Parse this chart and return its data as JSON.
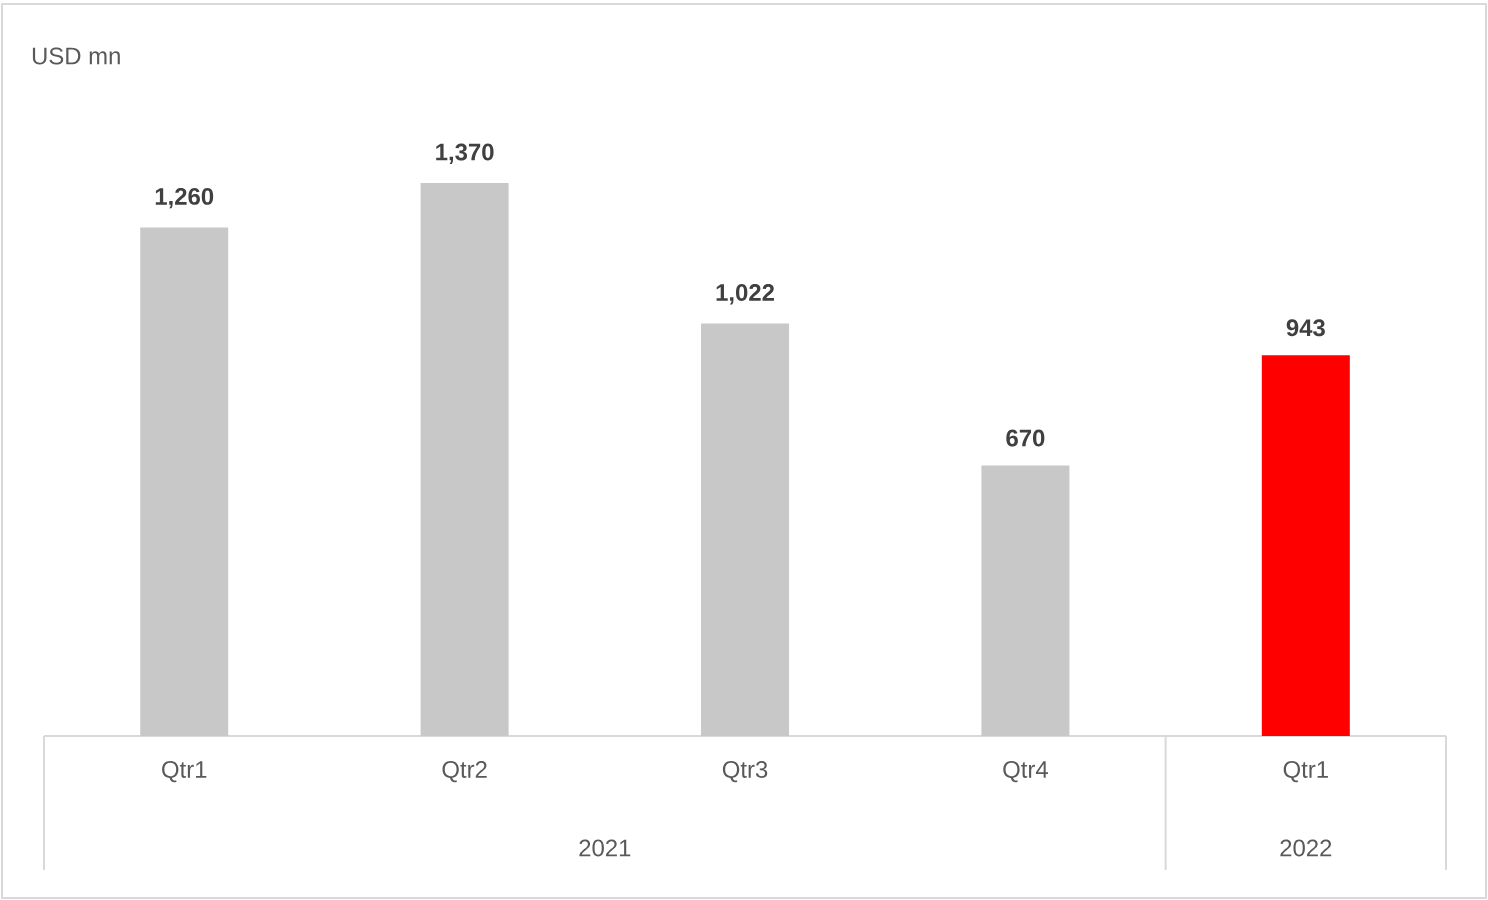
{
  "chart_data": {
    "type": "bar",
    "ylabel": "USD mn",
    "categories": [
      "Qtr1",
      "Qtr2",
      "Qtr3",
      "Qtr4",
      "Qtr1"
    ],
    "values": [
      1260,
      1370,
      1022,
      670,
      943
    ],
    "colors": [
      "#c8c8c8",
      "#c8c8c8",
      "#c8c8c8",
      "#c8c8c8",
      "#ff0000"
    ],
    "value_labels": [
      "1,260",
      "1,370",
      "1,022",
      "670",
      "943"
    ],
    "annotations": [
      "2021",
      "2022"
    ]
  }
}
